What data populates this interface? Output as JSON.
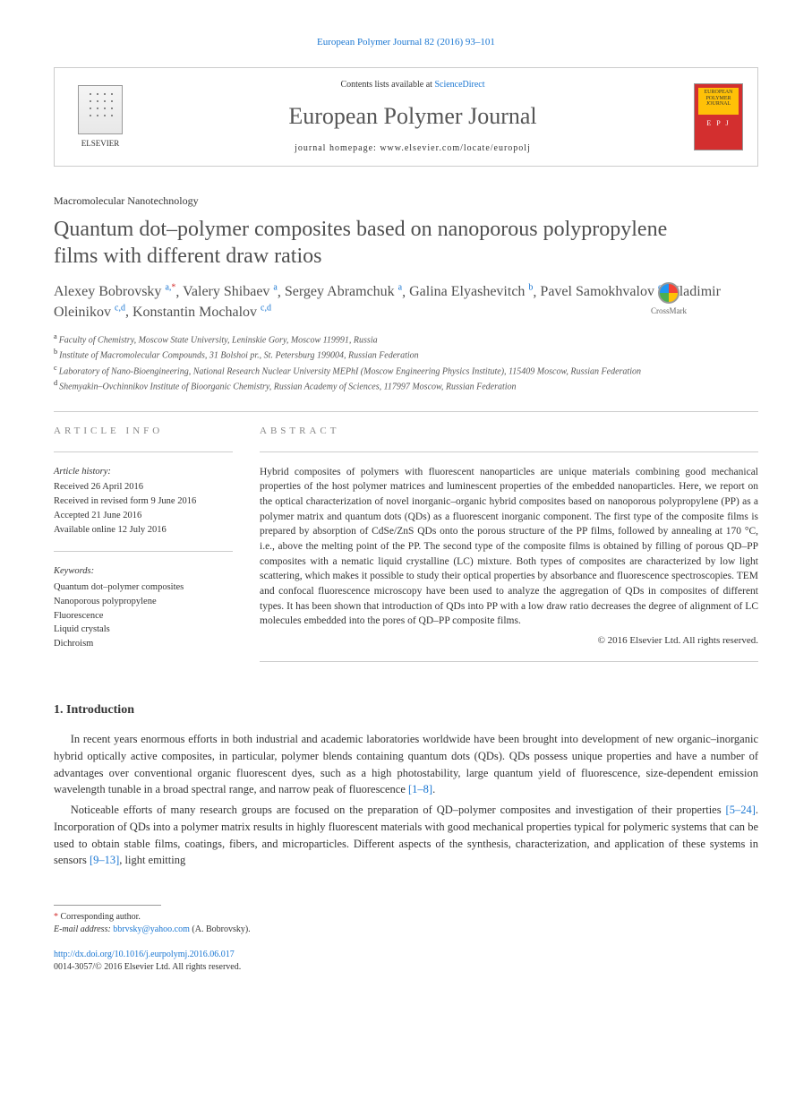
{
  "journal_ref": "European Polymer Journal 82 (2016) 93–101",
  "header": {
    "publisher": "ELSEVIER",
    "contents_prefix": "Contents lists available at ",
    "contents_link": "ScienceDirect",
    "journal_name": "European Polymer Journal",
    "homepage_prefix": "journal homepage: ",
    "homepage_url": "www.elsevier.com/locate/europolj",
    "cover_top": "EUROPEAN POLYMER JOURNAL",
    "cover_letters": "E P J"
  },
  "section_label": "Macromolecular Nanotechnology",
  "title": "Quantum dot–polymer composites based on nanoporous polypropylene films with different draw ratios",
  "crossmark": "CrossMark",
  "authors": [
    {
      "name": "Alexey Bobrovsky",
      "aff": "a",
      "corr": true
    },
    {
      "name": "Valery Shibaev",
      "aff": "a"
    },
    {
      "name": "Sergey Abramchuk",
      "aff": "a"
    },
    {
      "name": "Galina Elyashevitch",
      "aff": "b"
    },
    {
      "name": "Pavel Samokhvalov",
      "aff": "c"
    },
    {
      "name": "Vladimir Oleinikov",
      "aff": "c,d"
    },
    {
      "name": "Konstantin Mochalov",
      "aff": "c,d"
    }
  ],
  "affiliations": [
    {
      "key": "a",
      "text": "Faculty of Chemistry, Moscow State University, Leninskie Gory, Moscow 119991, Russia"
    },
    {
      "key": "b",
      "text": "Institute of Macromolecular Compounds, 31 Bolshoi pr., St. Petersburg 199004, Russian Federation"
    },
    {
      "key": "c",
      "text": "Laboratory of Nano-Bioengineering, National Research Nuclear University MEPhI (Moscow Engineering Physics Institute), 115409 Moscow, Russian Federation"
    },
    {
      "key": "d",
      "text": "Shemyakin–Ovchinnikov Institute of Bioorganic Chemistry, Russian Academy of Sciences, 117997 Moscow, Russian Federation"
    }
  ],
  "article_info": {
    "heading": "ARTICLE INFO",
    "history_label": "Article history:",
    "history": [
      "Received 26 April 2016",
      "Received in revised form 9 June 2016",
      "Accepted 21 June 2016",
      "Available online 12 July 2016"
    ],
    "keywords_label": "Keywords:",
    "keywords": [
      "Quantum dot–polymer composites",
      "Nanoporous polypropylene",
      "Fluorescence",
      "Liquid crystals",
      "Dichroism"
    ]
  },
  "abstract": {
    "heading": "ABSTRACT",
    "text": "Hybrid composites of polymers with fluorescent nanoparticles are unique materials combining good mechanical properties of the host polymer matrices and luminescent properties of the embedded nanoparticles. Here, we report on the optical characterization of novel inorganic–organic hybrid composites based on nanoporous polypropylene (PP) as a polymer matrix and quantum dots (QDs) as a fluorescent inorganic component. The first type of the composite films is prepared by absorption of CdSe/ZnS QDs onto the porous structure of the PP films, followed by annealing at 170 °C, i.e., above the melting point of the PP. The second type of the composite films is obtained by filling of porous QD–PP composites with a nematic liquid crystalline (LC) mixture. Both types of composites are characterized by low light scattering, which makes it possible to study their optical properties by absorbance and fluorescence spectroscopies. TEM and confocal fluorescence microscopy have been used to analyze the aggregation of QDs in composites of different types. It has been shown that introduction of QDs into PP with a low draw ratio decreases the degree of alignment of LC molecules embedded into the pores of QD–PP composite films.",
    "copyright": "© 2016 Elsevier Ltd. All rights reserved."
  },
  "intro": {
    "heading": "1. Introduction",
    "p1_before": "In recent years enormous efforts in both industrial and academic laboratories worldwide have been brought into development of new organic–inorganic hybrid optically active composites, in particular, polymer blends containing quantum dots (QDs). QDs possess unique properties and have a number of advantages over conventional organic fluorescent dyes, such as a high photostability, large quantum yield of fluorescence, size-dependent emission wavelength tunable in a broad spectral range, and narrow peak of fluorescence ",
    "p1_ref": "[1–8]",
    "p1_after": ".",
    "p2_before": "Noticeable efforts of many research groups are focused on the preparation of QD–polymer composites and investigation of their properties ",
    "p2_ref1": "[5–24]",
    "p2_mid": ". Incorporation of QDs into a polymer matrix results in highly fluorescent materials with good mechanical properties typical for polymeric systems that can be used to obtain stable films, coatings, fibers, and microparticles. Different aspects of the synthesis, characterization, and application of these systems in sensors ",
    "p2_ref2": "[9–13]",
    "p2_after": ", light emitting"
  },
  "footnote": {
    "corr_label": "Corresponding author.",
    "email_label": "E-mail address:",
    "email": "bbrvsky@yahoo.com",
    "email_name": "(A. Bobrovsky)."
  },
  "doi": {
    "url": "http://dx.doi.org/10.1016/j.eurpolymj.2016.06.017",
    "issn_line": "0014-3057/© 2016 Elsevier Ltd. All rights reserved."
  },
  "colors": {
    "link": "#1976d2",
    "corr": "#d32f2f",
    "text": "#333333",
    "heading_gray": "#888888"
  }
}
